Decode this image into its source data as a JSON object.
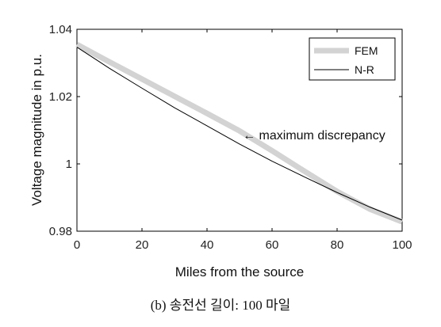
{
  "chart_data": {
    "type": "line",
    "xlabel": "Miles from the source",
    "ylabel": "Voltage magnitude in p.u.",
    "xlim": [
      0,
      100
    ],
    "ylim": [
      0.98,
      1.04
    ],
    "x_ticks": [
      0,
      20,
      40,
      60,
      80,
      100
    ],
    "x_tick_labels": [
      "0",
      "20",
      "40",
      "60",
      "80",
      "100"
    ],
    "y_ticks": [
      0.98,
      1.0,
      1.02,
      1.04
    ],
    "y_tick_labels": [
      "0.98",
      "1",
      "1.02",
      "1.04"
    ],
    "grid": false,
    "legend": "top-right",
    "series": [
      {
        "name": "FEM",
        "color": "#d3d3d3",
        "style": "thick",
        "x": [
          0,
          10,
          20,
          30,
          40,
          50,
          60,
          70,
          80,
          90,
          100
        ],
        "values": [
          1.0355,
          1.0303,
          1.0252,
          1.0201,
          1.015,
          1.0098,
          1.0039,
          0.9978,
          0.9918,
          0.9866,
          0.9828
        ]
      },
      {
        "name": "N-R",
        "color": "#000000",
        "style": "thin",
        "x": [
          0,
          10,
          20,
          30,
          40,
          50,
          60,
          70,
          80,
          90,
          100
        ],
        "values": [
          1.0347,
          1.0284,
          1.0225,
          1.0167,
          1.0113,
          1.0059,
          1.0008,
          0.9961,
          0.9915,
          0.9872,
          0.9833
        ]
      }
    ],
    "annotation": {
      "text": "← maximum discrepancy",
      "x": 51,
      "y": 1.0045
    }
  },
  "caption": "(b) 송전선 길이: 100 마일"
}
